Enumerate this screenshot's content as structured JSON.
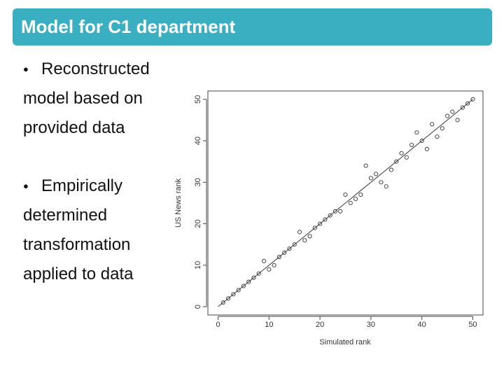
{
  "slide": {
    "title": "Model for C1 department",
    "bullets": [
      "Reconstructed model based on provided data",
      "Empirically determined transformation applied to data"
    ]
  },
  "chart_data": {
    "type": "scatter",
    "x_label": "Simulated rank",
    "y_label": "US News rank",
    "x": [
      1,
      2,
      3,
      4,
      5,
      6,
      7,
      8,
      9,
      10,
      11,
      12,
      13,
      14,
      15,
      16,
      17,
      18,
      19,
      20,
      21,
      22,
      23,
      24,
      25,
      26,
      27,
      28,
      29,
      30,
      31,
      32,
      33,
      34,
      35,
      36,
      37,
      38,
      39,
      40,
      41,
      42,
      43,
      44,
      45,
      46,
      47,
      48,
      49,
      50
    ],
    "values": [
      1,
      2,
      3,
      4,
      5,
      6,
      7,
      8,
      11,
      9,
      10,
      12,
      13,
      14,
      15,
      18,
      16,
      17,
      19,
      20,
      21,
      22,
      23,
      23,
      27,
      25,
      26,
      27,
      34,
      31,
      32,
      30,
      29,
      33,
      35,
      37,
      36,
      39,
      42,
      40,
      38,
      44,
      41,
      43,
      46,
      47,
      45,
      48,
      49,
      50
    ],
    "fit_line": {
      "x": [
        0,
        50
      ],
      "y": [
        0,
        50
      ]
    },
    "color": "#333333",
    "xlim": [
      -2,
      52
    ],
    "ylim": [
      -2,
      52
    ],
    "xticks": [
      0,
      10,
      20,
      30,
      40,
      50
    ],
    "yticks": [
      0,
      10,
      20,
      30,
      40,
      50
    ]
  }
}
